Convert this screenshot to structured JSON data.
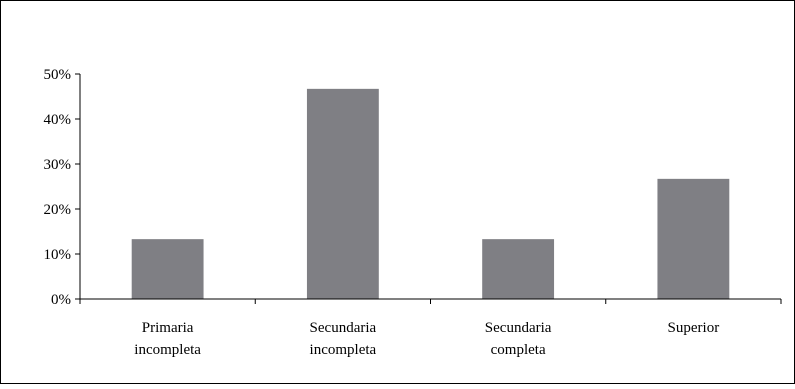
{
  "chart_data": {
    "type": "bar",
    "categories": [
      [
        "Primaria",
        "incompleta"
      ],
      [
        "Secundaria",
        "incompleta"
      ],
      [
        "Secundaria",
        "completa"
      ],
      [
        "Superior"
      ]
    ],
    "values": [
      13.3,
      46.7,
      13.3,
      26.7
    ],
    "yticks": [
      "0%",
      "10%",
      "20%",
      "30%",
      "40%",
      "50%"
    ],
    "ylim": [
      0,
      50
    ],
    "grid": false,
    "bar_color": "#7f7f84",
    "title": "",
    "xlabel": "",
    "ylabel": ""
  }
}
